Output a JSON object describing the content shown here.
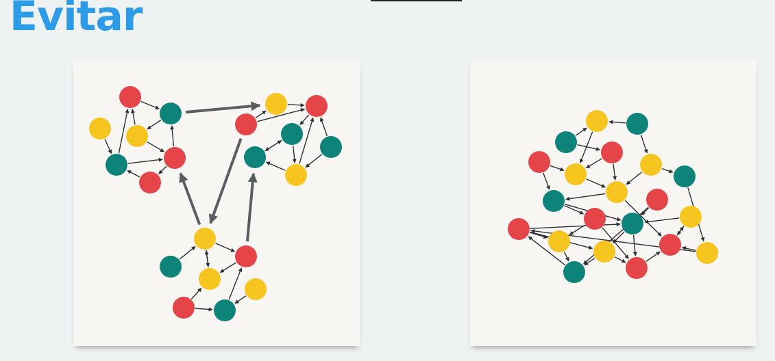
{
  "header": {
    "title": "Evitar"
  },
  "colors": {
    "red": "#e54448",
    "teal": "#0e8379",
    "yellow": "#f7c520",
    "edge": "#2b2f33",
    "cluster_edge": "#5a5d61"
  },
  "diagrams": [
    {
      "name": "clustered-network",
      "nodes": [
        {
          "id": "a1",
          "color": "red"
        },
        {
          "id": "a2",
          "color": "teal"
        },
        {
          "id": "a3",
          "color": "yellow"
        },
        {
          "id": "a4",
          "color": "yellow"
        },
        {
          "id": "a5",
          "color": "teal"
        },
        {
          "id": "a6",
          "color": "red"
        },
        {
          "id": "a7",
          "color": "red"
        },
        {
          "id": "b1",
          "color": "yellow"
        },
        {
          "id": "b2",
          "color": "red"
        },
        {
          "id": "b3",
          "color": "red"
        },
        {
          "id": "b4",
          "color": "teal"
        },
        {
          "id": "b5",
          "color": "teal"
        },
        {
          "id": "b6",
          "color": "teal"
        },
        {
          "id": "b7",
          "color": "yellow"
        },
        {
          "id": "c1",
          "color": "yellow"
        },
        {
          "id": "c2",
          "color": "teal"
        },
        {
          "id": "c3",
          "color": "red"
        },
        {
          "id": "c4",
          "color": "yellow"
        },
        {
          "id": "c5",
          "color": "yellow"
        },
        {
          "id": "c6",
          "color": "red"
        },
        {
          "id": "c7",
          "color": "teal"
        }
      ],
      "edges": [
        [
          "a1",
          "a2"
        ],
        [
          "a2",
          "a3"
        ],
        [
          "a4",
          "a5"
        ],
        [
          "a5",
          "a1"
        ],
        [
          "a3",
          "a1"
        ],
        [
          "a3",
          "a6"
        ],
        [
          "a6",
          "a2"
        ],
        [
          "a5",
          "a6"
        ],
        [
          "a6",
          "a7"
        ],
        [
          "a7",
          "a5"
        ],
        [
          "b3",
          "b1"
        ],
        [
          "b1",
          "b2"
        ],
        [
          "b3",
          "b2"
        ],
        [
          "b2",
          "b4"
        ],
        [
          "b4",
          "b5"
        ],
        [
          "b5",
          "b4"
        ],
        [
          "b4",
          "b7"
        ],
        [
          "b7",
          "b5"
        ],
        [
          "b7",
          "b2"
        ],
        [
          "b6",
          "b2"
        ],
        [
          "b6",
          "b7"
        ],
        [
          "c1",
          "c3"
        ],
        [
          "c2",
          "c1"
        ],
        [
          "c5",
          "c1"
        ],
        [
          "c1",
          "c5"
        ],
        [
          "c3",
          "c5"
        ],
        [
          "c6",
          "c5"
        ],
        [
          "c6",
          "c7"
        ],
        [
          "c7",
          "c3"
        ],
        [
          "c4",
          "c7"
        ]
      ],
      "cluster_edges": [
        [
          "a2",
          "b1"
        ],
        [
          "b3",
          "c1"
        ],
        [
          "c1",
          "a6"
        ],
        [
          "c3",
          "b5"
        ]
      ]
    },
    {
      "name": "dense-network",
      "nodes": [
        {
          "id": "d1",
          "color": "yellow"
        },
        {
          "id": "d2",
          "color": "teal"
        },
        {
          "id": "d3",
          "color": "teal"
        },
        {
          "id": "d4",
          "color": "red"
        },
        {
          "id": "d5",
          "color": "red"
        },
        {
          "id": "d6",
          "color": "yellow"
        },
        {
          "id": "d7",
          "color": "yellow"
        },
        {
          "id": "d8",
          "color": "teal"
        },
        {
          "id": "d9",
          "color": "yellow"
        },
        {
          "id": "d10",
          "color": "teal"
        },
        {
          "id": "d11",
          "color": "red"
        },
        {
          "id": "d12",
          "color": "red"
        },
        {
          "id": "d13",
          "color": "teal"
        },
        {
          "id": "d14",
          "color": "yellow"
        },
        {
          "id": "d15",
          "color": "red"
        },
        {
          "id": "d16",
          "color": "yellow"
        },
        {
          "id": "d17",
          "color": "yellow"
        },
        {
          "id": "d18",
          "color": "red"
        },
        {
          "id": "d19",
          "color": "yellow"
        },
        {
          "id": "d20",
          "color": "teal"
        },
        {
          "id": "d21",
          "color": "red"
        }
      ],
      "edges": [
        [
          "d2",
          "d1"
        ],
        [
          "d1",
          "d6"
        ],
        [
          "d3",
          "d1"
        ],
        [
          "d4",
          "d6"
        ],
        [
          "d4",
          "d9"
        ],
        [
          "d2",
          "d7"
        ],
        [
          "d3",
          "d4"
        ],
        [
          "d5",
          "d6"
        ],
        [
          "d6",
          "d9"
        ],
        [
          "d5",
          "d10"
        ],
        [
          "d7",
          "d9"
        ],
        [
          "d7",
          "d8"
        ],
        [
          "d9",
          "d10"
        ],
        [
          "d9",
          "d18"
        ],
        [
          "d8",
          "d19"
        ],
        [
          "d10",
          "d12"
        ],
        [
          "d10",
          "d13"
        ],
        [
          "d11",
          "d13"
        ],
        [
          "d11",
          "d20"
        ],
        [
          "d12",
          "d16"
        ],
        [
          "d13",
          "d17"
        ],
        [
          "d13",
          "d21"
        ],
        [
          "d14",
          "d13"
        ],
        [
          "d14",
          "d18"
        ],
        [
          "d15",
          "d13"
        ],
        [
          "d15",
          "d16"
        ],
        [
          "d15",
          "d17"
        ],
        [
          "d16",
          "d20"
        ],
        [
          "d17",
          "d20"
        ],
        [
          "d18",
          "d14"
        ],
        [
          "d19",
          "d15"
        ],
        [
          "d19",
          "d18"
        ],
        [
          "d12",
          "d21"
        ],
        [
          "d17",
          "d21"
        ],
        [
          "d21",
          "d18"
        ],
        [
          "d20",
          "d15"
        ]
      ],
      "cluster_edges": []
    }
  ]
}
